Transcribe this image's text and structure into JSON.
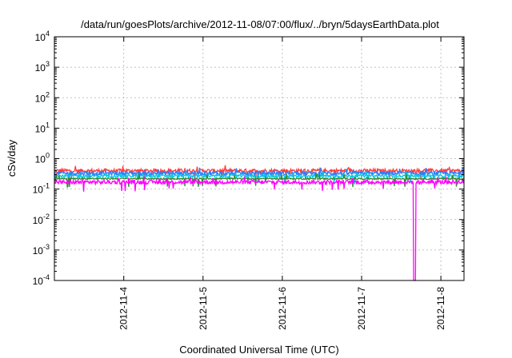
{
  "chart_data": {
    "type": "line",
    "title": "/data/run/goesPlots/archive/2012-11-08/07:00/flux/../bryn/5daysEarthData.plot",
    "xlabel": "Coordinated Universal Time (UTC)",
    "ylabel": "cSv/day",
    "yscale": "log",
    "ylim": [
      0.0001,
      10000
    ],
    "xlim": [
      "2012-11-03T03:00",
      "2012-11-08T07:00"
    ],
    "y_ticks": [
      {
        "base": "10",
        "exp": "-4",
        "value": 0.0001
      },
      {
        "base": "10",
        "exp": "-3",
        "value": 0.001
      },
      {
        "base": "10",
        "exp": "-2",
        "value": 0.01
      },
      {
        "base": "10",
        "exp": "-1",
        "value": 0.1
      },
      {
        "base": "10",
        "exp": "0",
        "value": 1
      },
      {
        "base": "10",
        "exp": "1",
        "value": 10
      },
      {
        "base": "10",
        "exp": "2",
        "value": 100
      },
      {
        "base": "10",
        "exp": "3",
        "value": 1000
      },
      {
        "base": "10",
        "exp": "4",
        "value": 10000
      }
    ],
    "x_ticks": [
      "2012-11-4",
      "2012-11-5",
      "2012-11-6",
      "2012-11-7",
      "2012-11-8"
    ],
    "grid": true,
    "legend": "none",
    "series": [
      {
        "color": "#ff3b3b",
        "level": 0.4,
        "noise": 0.15
      },
      {
        "color": "#2e7dff",
        "level": 0.33,
        "noise": 0.15
      },
      {
        "color": "#00c8e0",
        "level": 0.27,
        "noise": 0.1
      },
      {
        "color": "#2e8b2e",
        "level": 0.22,
        "noise": 0.06
      },
      {
        "color": "#ff00ff",
        "level": 0.17,
        "noise": 0.15,
        "dropout": {
          "at": "2012-11-7T16:00",
          "value": 0.0001
        }
      }
    ]
  }
}
